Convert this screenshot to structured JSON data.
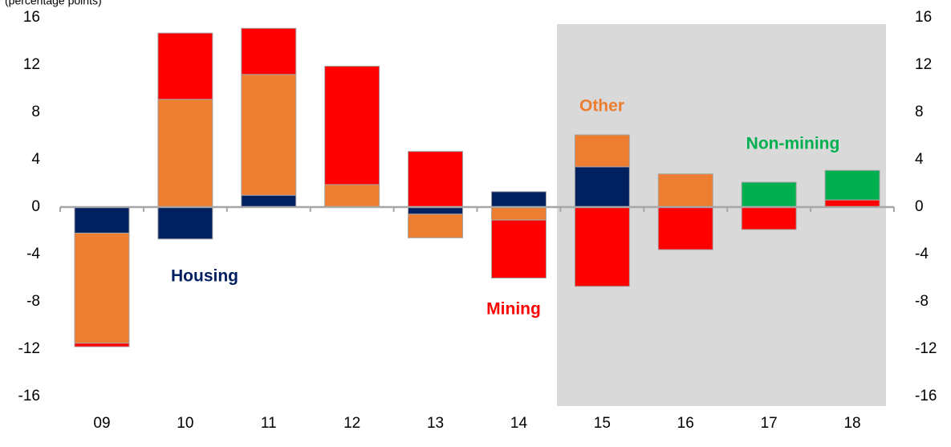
{
  "chart_data": {
    "type": "stacked-bar",
    "subtitle": "(percentage points)",
    "categories": [
      "09",
      "10",
      "11",
      "12",
      "13",
      "14",
      "15",
      "16",
      "17",
      "18"
    ],
    "series": [
      {
        "name": "Housing",
        "color": "#002060",
        "values": [
          -2.2,
          -2.7,
          1.0,
          0,
          -0.6,
          1.3,
          3.4,
          0,
          0,
          0
        ]
      },
      {
        "name": "Other",
        "color": "#ED7D31",
        "values": [
          -9.3,
          9.1,
          10.2,
          1.9,
          -2.0,
          -1.1,
          2.7,
          2.8,
          0,
          0
        ]
      },
      {
        "name": "Mining",
        "color": "#FF0000",
        "values": [
          -0.3,
          5.6,
          3.9,
          10.0,
          4.7,
          -4.9,
          -6.7,
          -3.6,
          -1.9,
          0.6
        ]
      },
      {
        "name": "Non-mining",
        "color": "#00B050",
        "values": [
          0,
          0,
          0,
          0,
          0,
          0,
          0,
          0,
          2.1,
          2.5
        ]
      }
    ],
    "ylim": [
      -16,
      16
    ],
    "yticks": [
      -16,
      -12,
      -8,
      -4,
      0,
      4,
      8,
      12,
      16
    ],
    "y2lim": [
      -16,
      16
    ],
    "y2ticks": [
      -16,
      -12,
      -8,
      -4,
      0,
      4,
      8,
      12,
      16
    ]
  }
}
